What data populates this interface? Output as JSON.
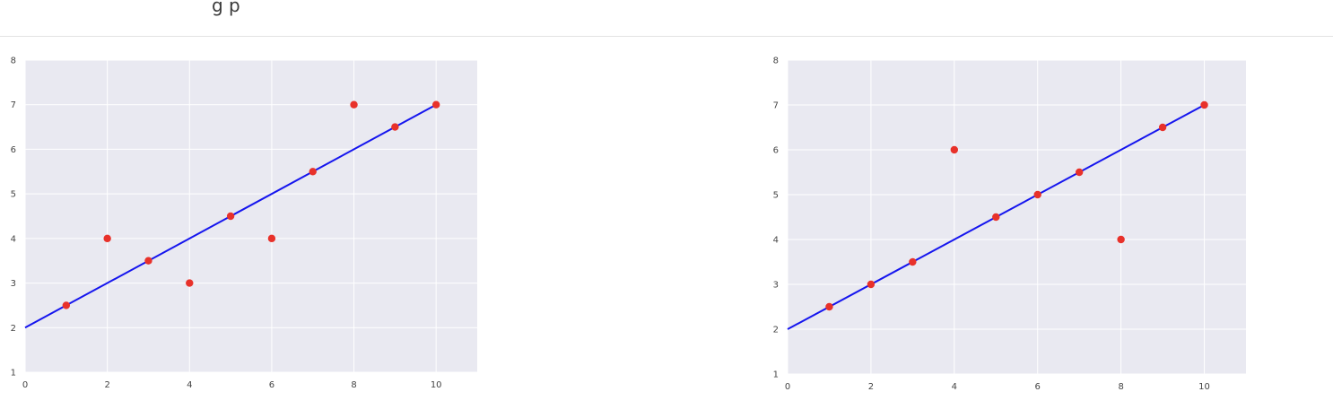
{
  "header": {
    "partial_text": "g   p"
  },
  "chart_data": [
    {
      "type": "scatter",
      "title": "",
      "xlabel": "",
      "ylabel": "",
      "xlim": [
        0,
        11
      ],
      "ylim": [
        1,
        8
      ],
      "xticks": [
        0,
        2,
        4,
        6,
        8,
        10
      ],
      "yticks": [
        1,
        2,
        3,
        4,
        5,
        6,
        7,
        8
      ],
      "grid": true,
      "background": "#e9e9f1",
      "point_color": "#e8312a",
      "line_color": "#1515ee",
      "points": {
        "x": [
          1,
          2,
          3,
          4,
          5,
          6,
          7,
          8,
          9,
          10
        ],
        "y": [
          2.5,
          4,
          3.5,
          3,
          4.5,
          4,
          5.5,
          7,
          6.5,
          7
        ]
      },
      "line": {
        "x": [
          0,
          10
        ],
        "y": [
          2,
          7
        ]
      }
    },
    {
      "type": "scatter",
      "title": "",
      "xlabel": "",
      "ylabel": "",
      "xlim": [
        0,
        11
      ],
      "ylim": [
        1,
        8
      ],
      "xticks": [
        0,
        2,
        4,
        6,
        8,
        10
      ],
      "yticks": [
        1,
        2,
        3,
        4,
        5,
        6,
        7,
        8
      ],
      "grid": true,
      "background": "#e9e9f1",
      "point_color": "#e8312a",
      "line_color": "#1515ee",
      "points": {
        "x": [
          1,
          2,
          3,
          4,
          5,
          6,
          7,
          8,
          9,
          10
        ],
        "y": [
          2.5,
          3,
          3.5,
          6,
          4.5,
          5,
          5.5,
          4,
          6.5,
          7
        ]
      },
      "line": {
        "x": [
          0,
          10
        ],
        "y": [
          2,
          7
        ]
      }
    }
  ]
}
